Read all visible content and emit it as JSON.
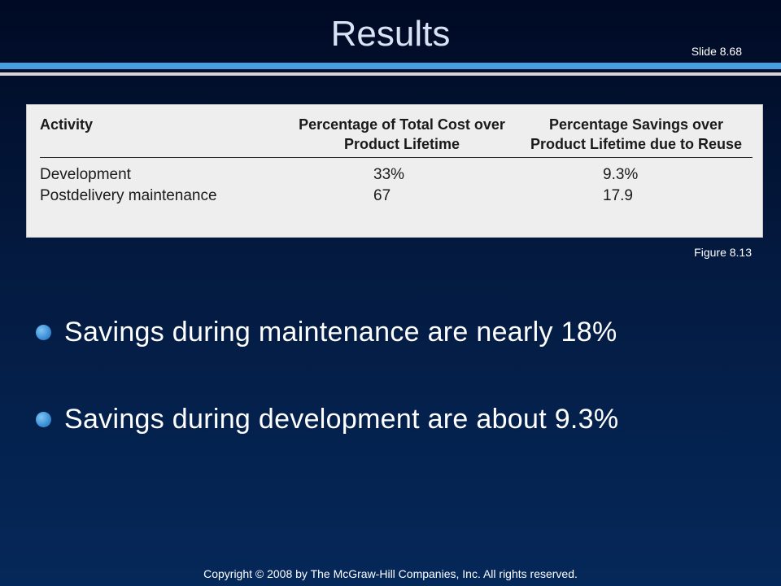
{
  "slide": {
    "title": "Results",
    "slide_number": "Slide 8.68"
  },
  "figure": {
    "headers": [
      "Activity",
      "Percentage of Total Cost over Product Lifetime",
      "Percentage Savings over Product Lifetime due to Reuse"
    ],
    "rows": [
      {
        "activity": "Development",
        "cost": "33%",
        "savings": "9.3%"
      },
      {
        "activity": "Postdelivery maintenance",
        "cost": "67",
        "savings": "17.9"
      }
    ],
    "caption": "Figure 8.13"
  },
  "bullets": [
    "Savings during maintenance are nearly 18%",
    "Savings during development are about 9.3%"
  ],
  "footer": "Copyright © 2008 by The McGraw-Hill Companies, Inc.  All rights reserved.",
  "colors": {
    "background_top": "#000a24",
    "background_bottom": "#05285a",
    "accent_rule": "#46a0e0",
    "bullet": "#3b8fd6"
  }
}
